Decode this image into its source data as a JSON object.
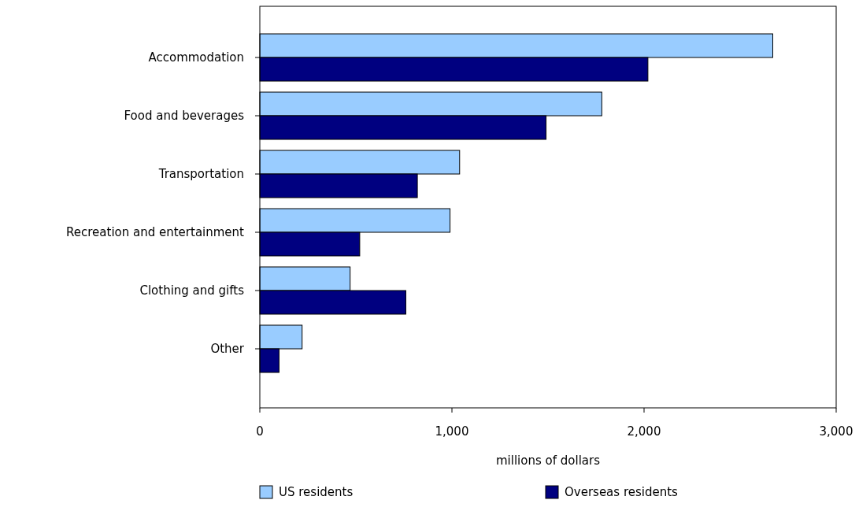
{
  "chart_data": {
    "type": "bar",
    "orientation": "horizontal",
    "xlabel": "millions of dollars",
    "categories": [
      "Accommodation",
      "Food and beverages",
      "Transportation",
      "Recreation and entertainment",
      "Clothing and gifts",
      "Other"
    ],
    "series": [
      {
        "name": "US residents",
        "color": "#99ccff",
        "values": [
          2670,
          1780,
          1040,
          990,
          470,
          220
        ]
      },
      {
        "name": "Overseas residents",
        "color": "#000080",
        "values": [
          2020,
          1490,
          820,
          520,
          760,
          100
        ]
      }
    ],
    "xlim": [
      0,
      3000
    ],
    "xticks": [
      {
        "value": 0,
        "label": "0"
      },
      {
        "value": 1000,
        "label": "1,000"
      },
      {
        "value": 2000,
        "label": "2,000"
      },
      {
        "value": 3000,
        "label": "3,000"
      }
    ],
    "grid": false,
    "legend": "bottom"
  }
}
